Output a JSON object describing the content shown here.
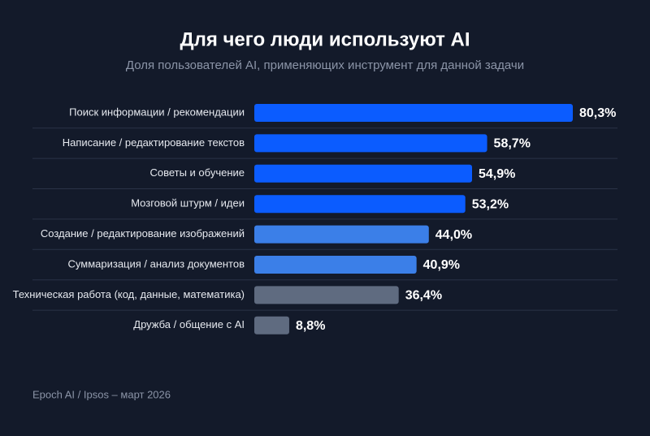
{
  "chart_data": {
    "type": "hbar",
    "title": "Для чего люди используют AI",
    "subtitle": "Доля пользователей AI, применяющих инструмент для данной задачи",
    "categories": [
      "Поиск информации / рекомендации",
      "Написание / редактирование текстов",
      "Советы и обучение",
      "Мозговой штурм / идеи",
      "Создание / редактирование изображений",
      "Суммаризация / анализ документов",
      "Техническая работа (код, данные, математика)",
      "Дружба / общение с AI"
    ],
    "values": [
      80.3,
      58.7,
      54.9,
      53.2,
      44.0,
      40.9,
      36.4,
      8.8
    ],
    "value_labels": [
      "80,3%",
      "58,7%",
      "54,9%",
      "53,2%",
      "44,0%",
      "40,9%",
      "36,4%",
      "8,8%"
    ],
    "colors": [
      "#0b5cff",
      "#0b5cff",
      "#0b5cff",
      "#0b5cff",
      "#3b7fe8",
      "#3b7fe8",
      "#5f6b80",
      "#5f6b80"
    ],
    "source": "Epoch AI / Ipsos – март 2026"
  }
}
